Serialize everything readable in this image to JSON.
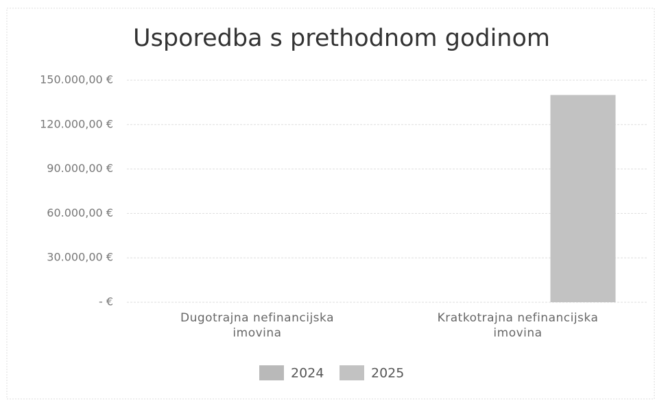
{
  "chart_data": {
    "type": "bar",
    "title": "Usporedba s prethodnom godinom",
    "categories": [
      "Dugotrajna nefinancijska imovina",
      "Kratkotrajna nefinancijska imovina"
    ],
    "series": [
      {
        "name": "2024",
        "color": "#b9b9b9",
        "values": [
          0,
          0
        ]
      },
      {
        "name": "2025",
        "color": "#c2c2c2",
        "values": [
          0,
          140000
        ]
      }
    ],
    "ylim": [
      0,
      150000
    ],
    "yticks": [
      {
        "value": 0,
        "label": "-   €"
      },
      {
        "value": 30000,
        "label": "30.000,00 €"
      },
      {
        "value": 60000,
        "label": "60.000,00 €"
      },
      {
        "value": 90000,
        "label": "90.000,00 €"
      },
      {
        "value": 120000,
        "label": "120.000,00 €"
      },
      {
        "value": 150000,
        "label": "150.000,00 €"
      }
    ],
    "grid": true,
    "legend": "bottom"
  }
}
